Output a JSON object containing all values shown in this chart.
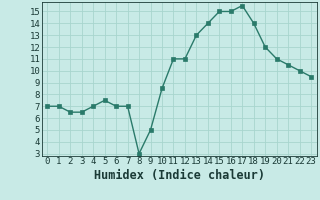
{
  "x": [
    0,
    1,
    2,
    3,
    4,
    5,
    6,
    7,
    8,
    9,
    10,
    11,
    12,
    13,
    14,
    15,
    16,
    17,
    18,
    19,
    20,
    21,
    22,
    23
  ],
  "y": [
    7.0,
    7.0,
    6.5,
    6.5,
    7.0,
    7.5,
    7.0,
    7.0,
    3.0,
    5.0,
    8.5,
    11.0,
    11.0,
    13.0,
    14.0,
    15.0,
    15.0,
    15.5,
    14.0,
    12.0,
    11.0,
    10.5,
    10.0,
    9.5
  ],
  "xlabel": "Humidex (Indice chaleur)",
  "xlim": [
    -0.5,
    23.5
  ],
  "ylim": [
    2.8,
    15.8
  ],
  "yticks": [
    3,
    4,
    5,
    6,
    7,
    8,
    9,
    10,
    11,
    12,
    13,
    14,
    15
  ],
  "xticks": [
    0,
    1,
    2,
    3,
    4,
    5,
    6,
    7,
    8,
    9,
    10,
    11,
    12,
    13,
    14,
    15,
    16,
    17,
    18,
    19,
    20,
    21,
    22,
    23
  ],
  "line_color": "#2a7a6a",
  "marker_color": "#2a7a6a",
  "bg_color": "#c8eae6",
  "grid_color_major": "#a8d5ce",
  "grid_color_minor": "#b8ddd8",
  "axes_bg": "#c8eae6",
  "tick_label_color": "#1a3a36",
  "xlabel_color": "#1a3a36",
  "font_size": 6.5,
  "xlabel_fontsize": 8.5
}
